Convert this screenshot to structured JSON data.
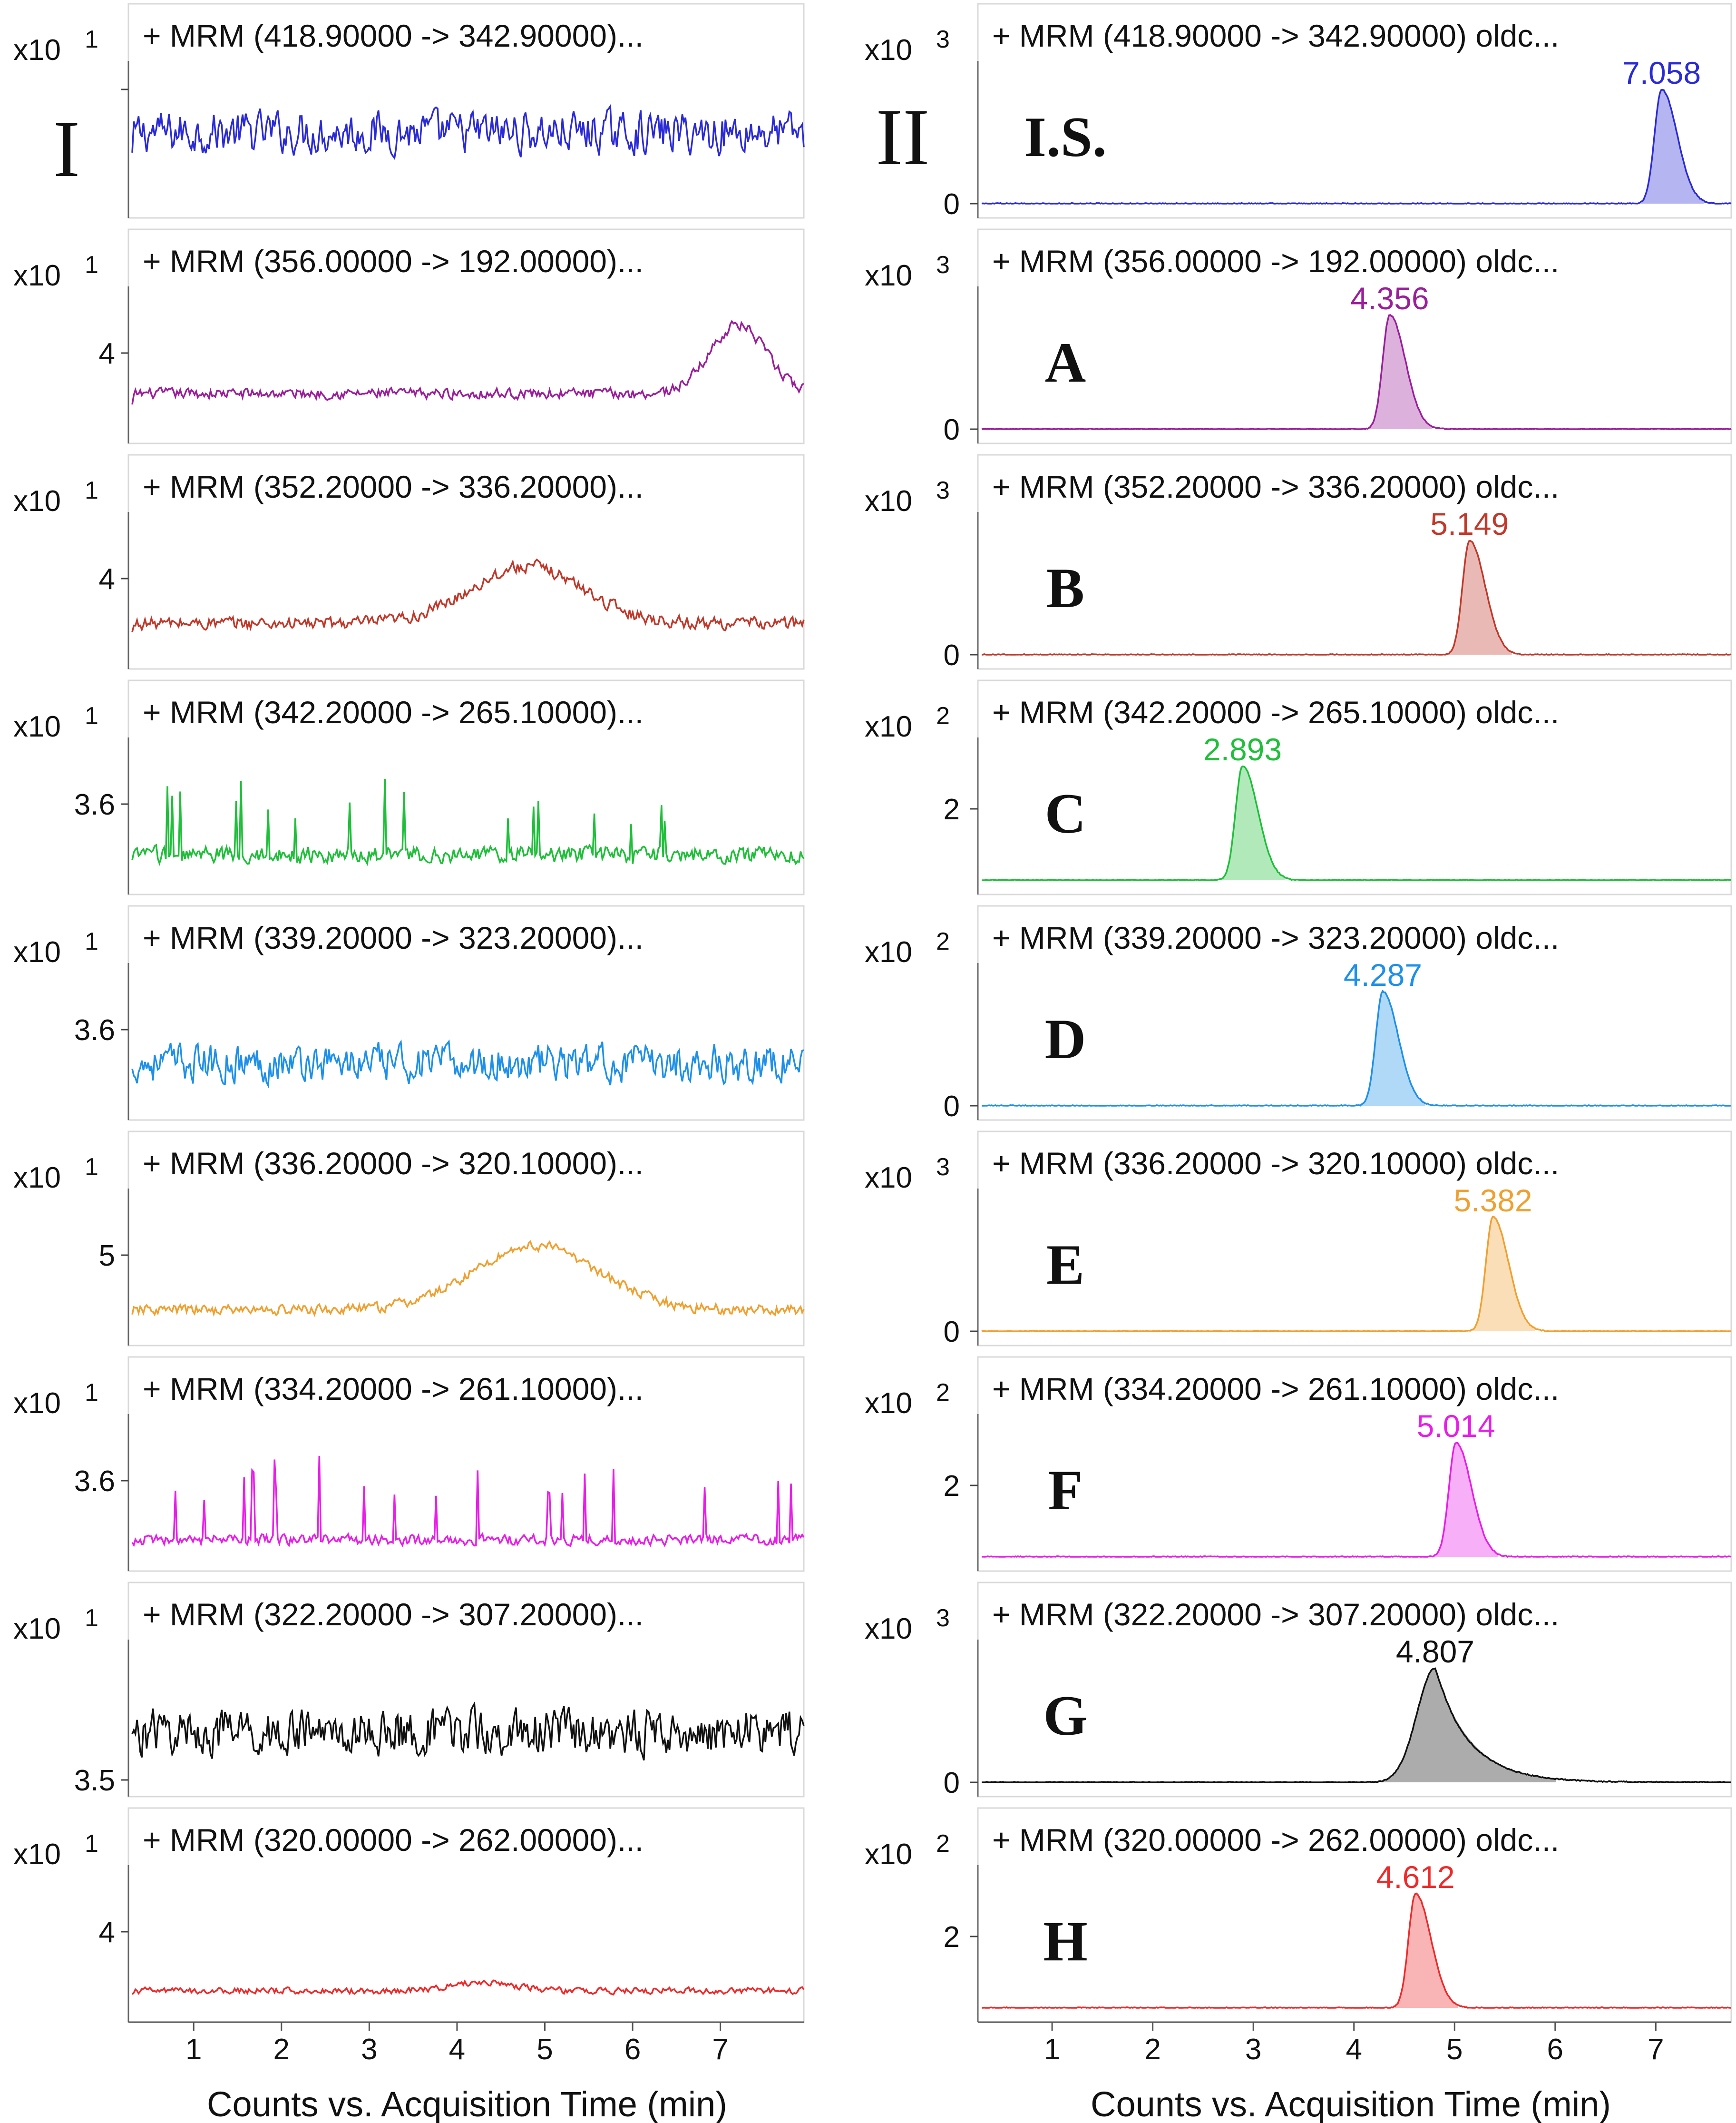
{
  "figure": {
    "x_axis_title": "Counts vs. Acquisition Time (min)",
    "x_ticks": [
      "1",
      "2",
      "3",
      "4",
      "5",
      "6",
      "7"
    ],
    "column_labels": [
      "I",
      "II"
    ]
  },
  "chart_data": [
    {
      "type": "line",
      "column": "I",
      "id": "I-0",
      "title": "+ MRM (418.90000 -> 342.90000)...",
      "exponent_label": "x10",
      "exponent": "1",
      "y_tick_labels": [
        ""
      ],
      "color": "#2b2bd6",
      "peak": null,
      "label": "",
      "xlabel": "Acquisition Time (min)",
      "ylabel": "Counts",
      "series": [
        {
          "name": "418.9 -> 342.9"
        }
      ]
    },
    {
      "type": "line",
      "column": "I",
      "id": "I-1",
      "title": "+ MRM (356.00000 -> 192.00000)...",
      "exponent_label": "x10",
      "exponent": "1",
      "y_tick_labels": [
        "4"
      ],
      "color": "#9b1f9b",
      "peak": null,
      "label": "",
      "xlabel": "Acquisition Time (min)",
      "ylabel": "Counts",
      "series": [
        {
          "name": "356.0 -> 192.0"
        }
      ]
    },
    {
      "type": "line",
      "column": "I",
      "id": "I-2",
      "title": "+ MRM (352.20000 -> 336.20000)...",
      "exponent_label": "x10",
      "exponent": "1",
      "y_tick_labels": [
        "4"
      ],
      "color": "#c0392b",
      "peak": null,
      "label": "",
      "xlabel": "Acquisition Time (min)",
      "ylabel": "Counts",
      "series": [
        {
          "name": "352.2 -> 336.2"
        }
      ]
    },
    {
      "type": "line",
      "column": "I",
      "id": "I-3",
      "title": "+ MRM (342.20000 -> 265.10000)...",
      "exponent_label": "x10",
      "exponent": "1",
      "y_tick_labels": [
        "3.6"
      ],
      "color": "#1fbf3a",
      "peak": null,
      "label": "",
      "xlabel": "Acquisition Time (min)",
      "ylabel": "Counts",
      "series": [
        {
          "name": "342.2 -> 265.1"
        }
      ]
    },
    {
      "type": "line",
      "column": "I",
      "id": "I-4",
      "title": "+ MRM (339.20000 -> 323.20000)...",
      "exponent_label": "x10",
      "exponent": "1",
      "y_tick_labels": [
        "3.6"
      ],
      "color": "#1e90e8",
      "peak": null,
      "label": "",
      "xlabel": "Acquisition Time (min)",
      "ylabel": "Counts",
      "series": [
        {
          "name": "339.2 -> 323.2"
        }
      ]
    },
    {
      "type": "line",
      "column": "I",
      "id": "I-5",
      "title": "+ MRM (336.20000 -> 320.10000)...",
      "exponent_label": "x10",
      "exponent": "1",
      "y_tick_labels": [
        "5"
      ],
      "color": "#f0a030",
      "peak": null,
      "label": "",
      "xlabel": "Acquisition Time (min)",
      "ylabel": "Counts",
      "series": [
        {
          "name": "336.2 -> 320.1"
        }
      ]
    },
    {
      "type": "line",
      "column": "I",
      "id": "I-6",
      "title": "+ MRM (334.20000 -> 261.10000)...",
      "exponent_label": "x10",
      "exponent": "1",
      "y_tick_labels": [
        "3.6"
      ],
      "color": "#e81ee8",
      "peak": null,
      "label": "",
      "xlabel": "Acquisition Time (min)",
      "ylabel": "Counts",
      "series": [
        {
          "name": "334.2 -> 261.1"
        }
      ]
    },
    {
      "type": "line",
      "column": "I",
      "id": "I-7",
      "title": "+ MRM (322.20000 -> 307.20000)...",
      "exponent_label": "x10",
      "exponent": "1",
      "y_tick_labels": [
        "3.5"
      ],
      "color": "#111111",
      "peak": null,
      "label": "",
      "xlabel": "Acquisition Time (min)",
      "ylabel": "Counts",
      "series": [
        {
          "name": "322.2 -> 307.2"
        }
      ]
    },
    {
      "type": "line",
      "column": "I",
      "id": "I-8",
      "title": "+ MRM (320.00000 -> 262.00000)...",
      "exponent_label": "x10",
      "exponent": "1",
      "y_tick_labels": [
        "4"
      ],
      "color": "#ee2a2a",
      "peak": null,
      "label": "",
      "xlabel": "Acquisition Time (min)",
      "ylabel": "Counts",
      "series": [
        {
          "name": "320.0 -> 262.0"
        }
      ]
    },
    {
      "type": "line",
      "column": "II",
      "id": "II-0",
      "title": "+ MRM (418.90000 -> 342.90000) oldc...",
      "exponent_label": "x10",
      "exponent": "3",
      "y_tick_labels": [
        "0"
      ],
      "color": "#2b2bd6",
      "peak": {
        "rt": 7.058,
        "label": "7.058"
      },
      "label": "I.S.",
      "xlabel": "Acquisition Time (min)",
      "ylabel": "Counts",
      "series": [
        {
          "name": "418.9 -> 342.9",
          "peak_rt": 7.058
        }
      ]
    },
    {
      "type": "line",
      "column": "II",
      "id": "II-1",
      "title": "+ MRM (356.00000 -> 192.00000) oldc...",
      "exponent_label": "x10",
      "exponent": "3",
      "y_tick_labels": [
        "0"
      ],
      "color": "#9b1f9b",
      "peak": {
        "rt": 4.356,
        "label": "4.356"
      },
      "label": "A",
      "xlabel": "Acquisition Time (min)",
      "ylabel": "Counts",
      "series": [
        {
          "name": "356.0 -> 192.0",
          "peak_rt": 4.356
        }
      ]
    },
    {
      "type": "line",
      "column": "II",
      "id": "II-2",
      "title": "+ MRM (352.20000 -> 336.20000) oldc...",
      "exponent_label": "x10",
      "exponent": "3",
      "y_tick_labels": [
        "0"
      ],
      "color": "#c0392b",
      "peak": {
        "rt": 5.149,
        "label": "5.149"
      },
      "label": "B",
      "xlabel": "Acquisition Time (min)",
      "ylabel": "Counts",
      "series": [
        {
          "name": "352.2 -> 336.2",
          "peak_rt": 5.149
        }
      ]
    },
    {
      "type": "line",
      "column": "II",
      "id": "II-3",
      "title": "+ MRM (342.20000 -> 265.10000) oldc...",
      "exponent_label": "x10",
      "exponent": "2",
      "y_tick_labels": [
        "2"
      ],
      "color": "#1fbf3a",
      "peak": {
        "rt": 2.893,
        "label": "2.893"
      },
      "label": "C",
      "xlabel": "Acquisition Time (min)",
      "ylabel": "Counts",
      "series": [
        {
          "name": "342.2 -> 265.1",
          "peak_rt": 2.893
        }
      ]
    },
    {
      "type": "line",
      "column": "II",
      "id": "II-4",
      "title": "+ MRM (339.20000 -> 323.20000) oldc...",
      "exponent_label": "x10",
      "exponent": "2",
      "y_tick_labels": [
        "0"
      ],
      "color": "#1e90e8",
      "peak": {
        "rt": 4.287,
        "label": "4.287"
      },
      "label": "D",
      "xlabel": "Acquisition Time (min)",
      "ylabel": "Counts",
      "series": [
        {
          "name": "339.2 -> 323.2",
          "peak_rt": 4.287
        }
      ]
    },
    {
      "type": "line",
      "column": "II",
      "id": "II-5",
      "title": "+ MRM (336.20000 -> 320.10000) oldc...",
      "exponent_label": "x10",
      "exponent": "3",
      "y_tick_labels": [
        "0"
      ],
      "color": "#f0a030",
      "peak": {
        "rt": 5.382,
        "label": "5.382"
      },
      "label": "E",
      "xlabel": "Acquisition Time (min)",
      "ylabel": "Counts",
      "series": [
        {
          "name": "336.2 -> 320.1",
          "peak_rt": 5.382
        }
      ]
    },
    {
      "type": "line",
      "column": "II",
      "id": "II-6",
      "title": "+ MRM (334.20000 -> 261.10000) oldc...",
      "exponent_label": "x10",
      "exponent": "2",
      "y_tick_labels": [
        "2"
      ],
      "color": "#e81ee8",
      "peak": {
        "rt": 5.014,
        "label": "5.014"
      },
      "label": "F",
      "xlabel": "Acquisition Time (min)",
      "ylabel": "Counts",
      "series": [
        {
          "name": "334.2 -> 261.1",
          "peak_rt": 5.014
        }
      ]
    },
    {
      "type": "line",
      "column": "II",
      "id": "II-7",
      "title": "+ MRM (322.20000 -> 307.20000) oldc...",
      "exponent_label": "x10",
      "exponent": "3",
      "y_tick_labels": [
        "0"
      ],
      "color": "#111111",
      "peak": {
        "rt": 4.807,
        "label": "4.807"
      },
      "label": "G",
      "xlabel": "Acquisition Time (min)",
      "ylabel": "Counts",
      "series": [
        {
          "name": "322.2 -> 307.2",
          "peak_rt": 4.807
        }
      ]
    },
    {
      "type": "line",
      "column": "II",
      "id": "II-8",
      "title": "+ MRM (320.00000 -> 262.00000) oldc...",
      "exponent_label": "x10",
      "exponent": "2",
      "y_tick_labels": [
        "2"
      ],
      "color": "#ee2a2a",
      "peak": {
        "rt": 4.612,
        "label": "4.612"
      },
      "label": "H",
      "xlabel": "Acquisition Time (min)",
      "ylabel": "Counts",
      "series": [
        {
          "name": "320.0 -> 262.0",
          "peak_rt": 4.612
        }
      ]
    }
  ]
}
